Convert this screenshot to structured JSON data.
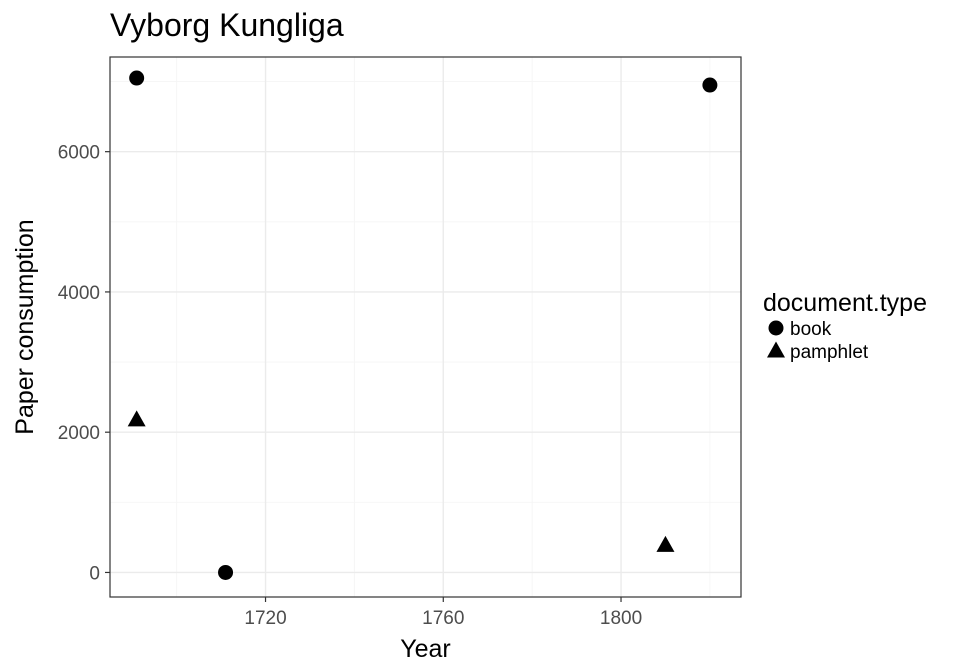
{
  "chart_data": {
    "type": "scatter",
    "title": "Vyborg Kungliga",
    "xlabel": "Year",
    "ylabel": "Paper consumption",
    "xlim": [
      1685,
      1827
    ],
    "ylim": [
      -350,
      7350
    ],
    "x_ticks": [
      1720,
      1760,
      1800
    ],
    "y_ticks": [
      0,
      2000,
      4000,
      6000
    ],
    "grid": true,
    "legend": {
      "title": "document.type",
      "position": "right",
      "entries": [
        {
          "label": "book",
          "shape": "circle"
        },
        {
          "label": "pamphlet",
          "shape": "triangle"
        }
      ]
    },
    "series": [
      {
        "name": "book",
        "shape": "circle",
        "color": "#000000",
        "points": [
          {
            "x": 1691,
            "y": 7050
          },
          {
            "x": 1711,
            "y": 0
          },
          {
            "x": 1820,
            "y": 6950
          }
        ]
      },
      {
        "name": "pamphlet",
        "shape": "triangle",
        "color": "#000000",
        "points": [
          {
            "x": 1691,
            "y": 2170
          },
          {
            "x": 1810,
            "y": 380
          }
        ]
      }
    ]
  }
}
